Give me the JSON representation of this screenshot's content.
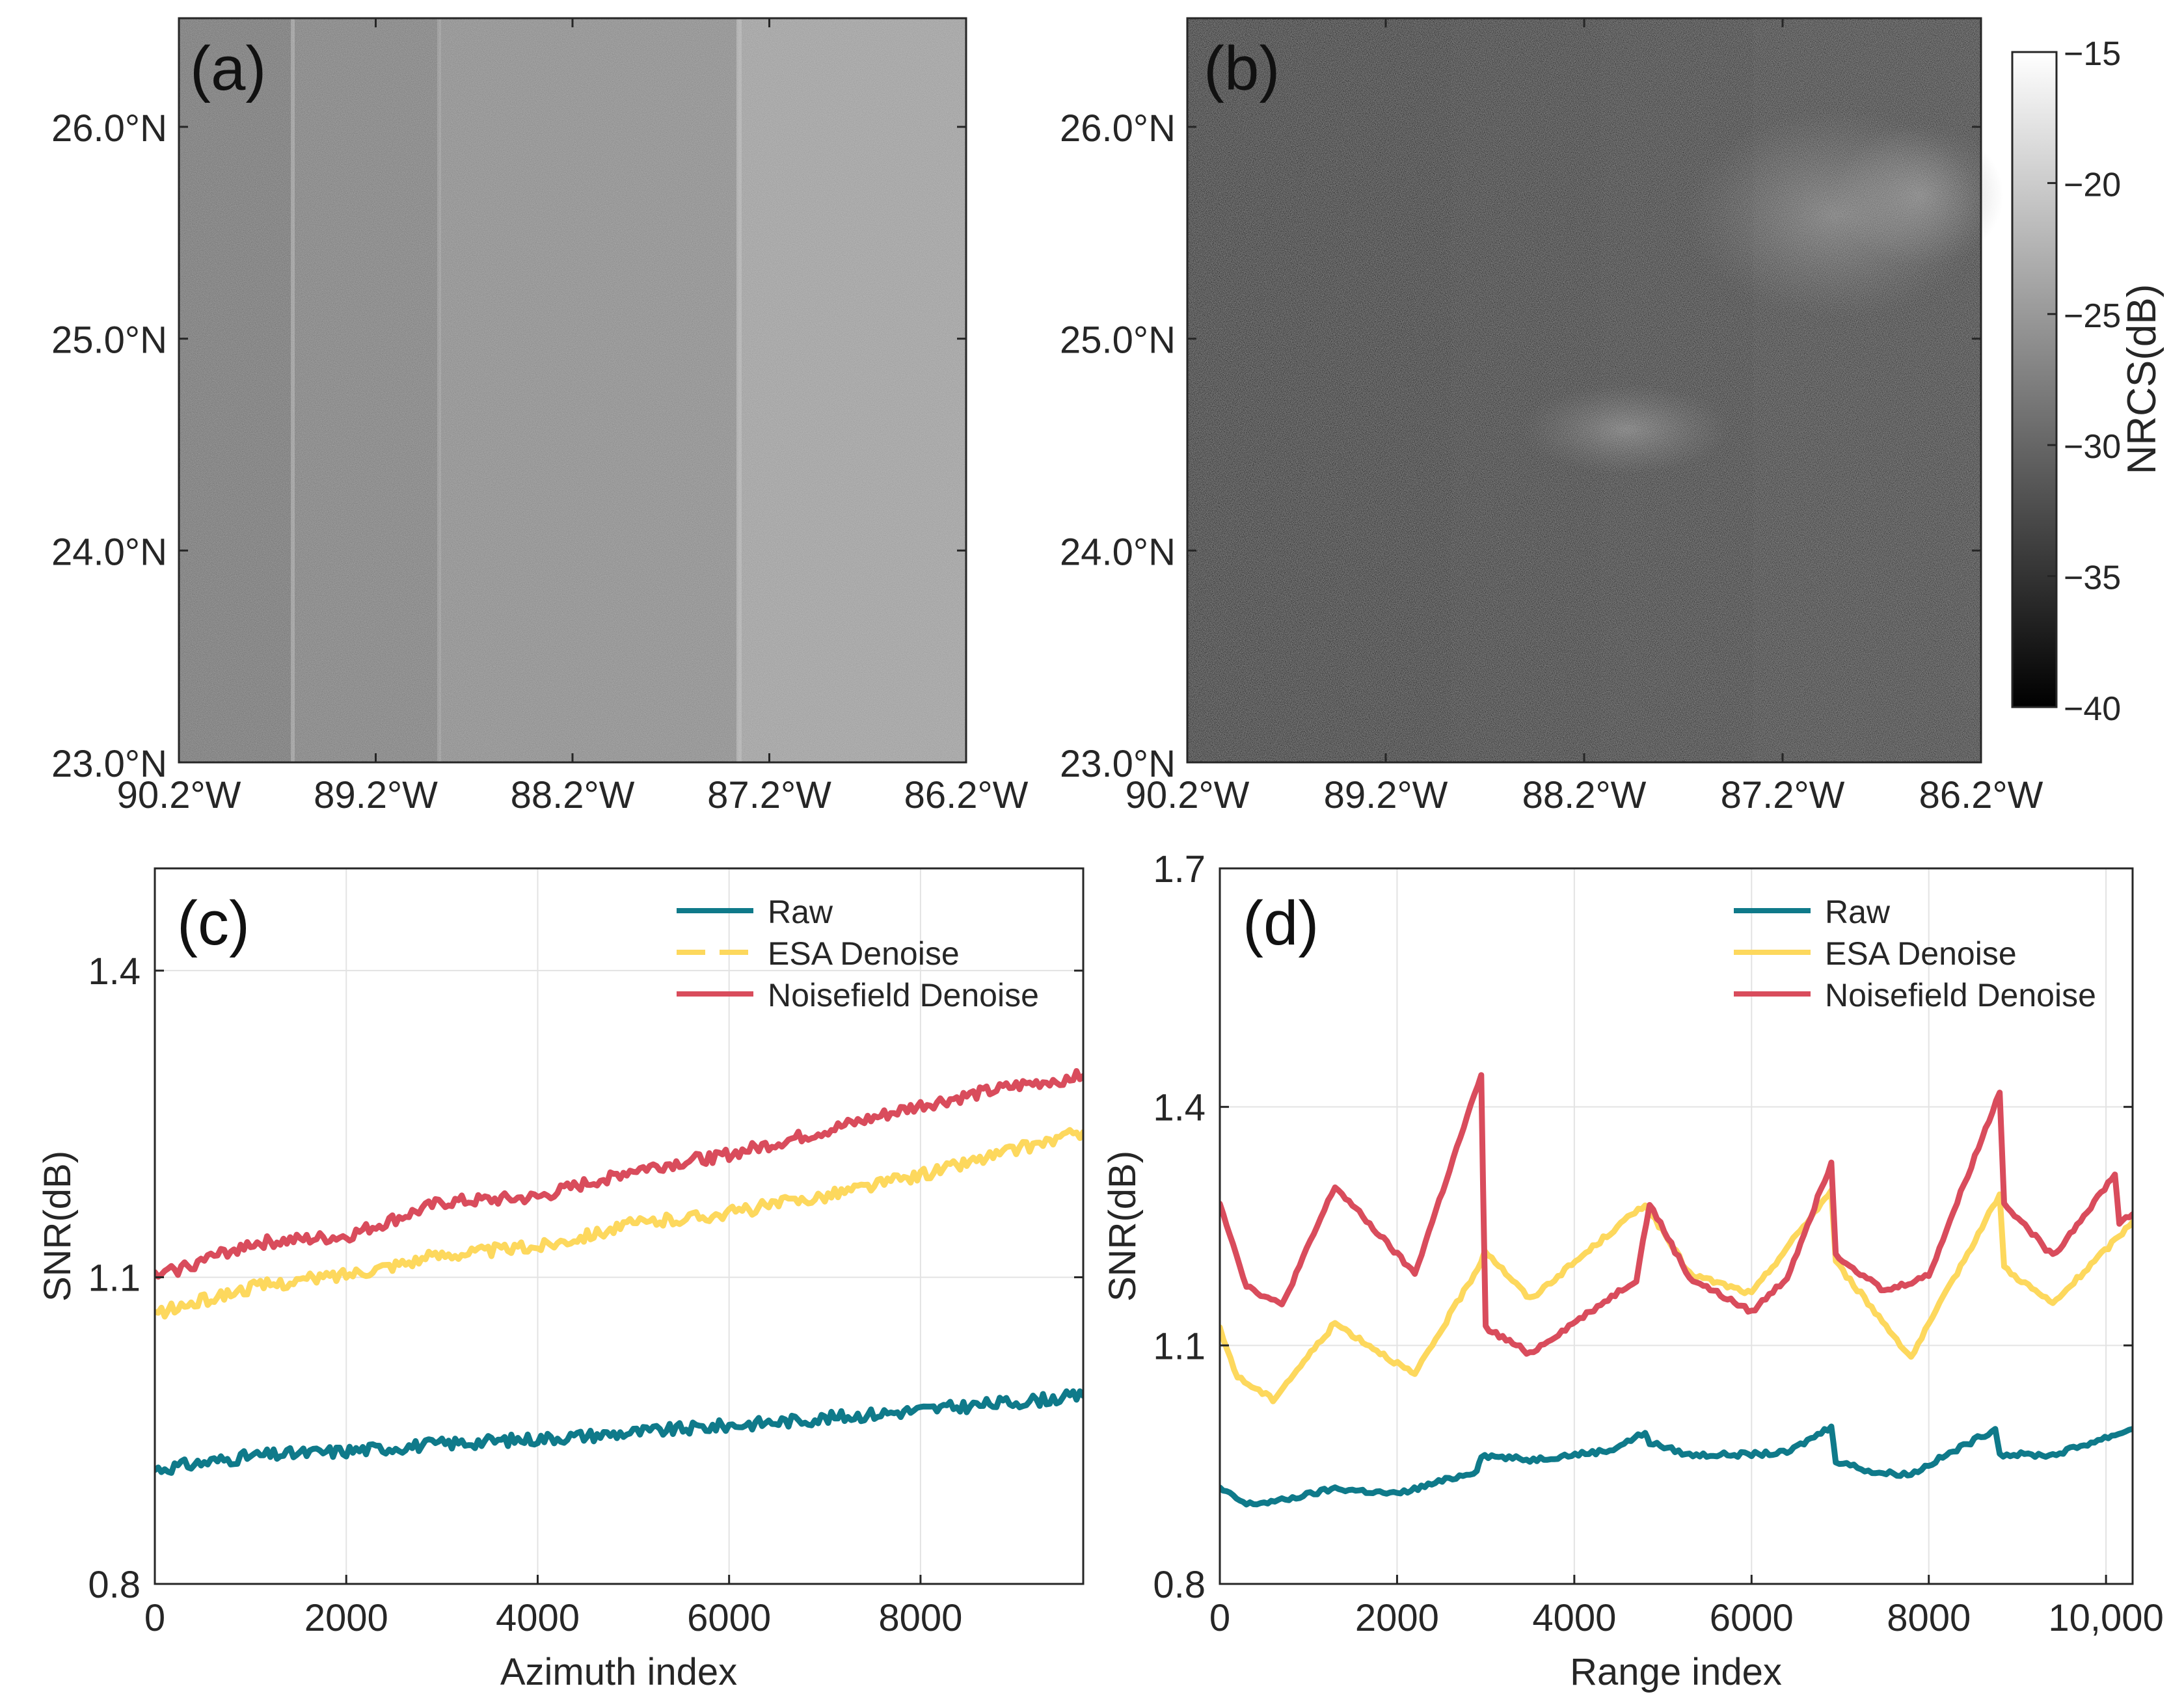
{
  "chart_data": [
    {
      "panel_label": "(a)",
      "type": "heatmap",
      "description_kind": "SAR NRCS image before denoising",
      "x_ticks": [
        "90.2°W",
        "89.2°W",
        "88.2°W",
        "87.2°W",
        "86.2°W"
      ],
      "y_ticks": [
        "26.0°N",
        "25.0°N",
        "24.0°N",
        "23.0°N"
      ],
      "colors": {
        "subswath_tones": [
          "#6c6c6c",
          "#777777",
          "#858585",
          "#9a9a9a"
        ]
      }
    },
    {
      "panel_label": "(b)",
      "type": "heatmap",
      "description_kind": "SAR NRCS image after noisefield denoising",
      "x_ticks": [
        "90.2°W",
        "89.2°W",
        "88.2°W",
        "87.2°W",
        "86.2°W"
      ],
      "y_ticks": [
        "26.0°N",
        "25.0°N",
        "24.0°N",
        "23.0°N"
      ],
      "colorbar": {
        "label": "NRCS(dB)",
        "range": [
          -40,
          -15
        ],
        "ticks": [
          "-15",
          "-20",
          "-25",
          "-30",
          "-35",
          "-40"
        ]
      }
    },
    {
      "panel_label": "(c)",
      "type": "line",
      "xlabel": "Azimuth index",
      "ylabel": "SNR(dB)",
      "xlim": [
        0,
        9700
      ],
      "ylim": [
        0.8,
        1.5
      ],
      "x_ticks": [
        "0",
        "2000",
        "4000",
        "6000",
        "8000"
      ],
      "y_ticks": [
        "0.8",
        "1.1",
        "1.4"
      ],
      "legend_position": "top-right",
      "x": [
        0,
        1000,
        2000,
        3000,
        4000,
        5000,
        6000,
        7000,
        8000,
        9000,
        9700
      ],
      "series": [
        {
          "name": "Raw",
          "color": "#0f7a8a",
          "values": [
            0.912,
            0.925,
            0.93,
            0.937,
            0.942,
            0.948,
            0.955,
            0.962,
            0.97,
            0.978,
            0.984
          ]
        },
        {
          "name": "ESA Denoise",
          "color": "#fdd85d",
          "dashed_legend": true,
          "values": [
            1.064,
            1.09,
            1.103,
            1.122,
            1.13,
            1.152,
            1.163,
            1.18,
            1.2,
            1.225,
            1.242
          ]
        },
        {
          "name": "Noisefield Denoise",
          "color": "#d94c5c",
          "values": [
            1.1,
            1.133,
            1.14,
            1.173,
            1.178,
            1.205,
            1.22,
            1.243,
            1.268,
            1.287,
            1.297
          ]
        }
      ]
    },
    {
      "panel_label": "(d)",
      "type": "line",
      "xlabel": "Range index",
      "ylabel": "SNR(dB)",
      "xlim": [
        0,
        10300
      ],
      "ylim": [
        0.8,
        1.7
      ],
      "x_ticks": [
        "0",
        "2000",
        "4000",
        "6000",
        "8000",
        "10,000"
      ],
      "y_ticks": [
        "0.8",
        "1.1",
        "1.4",
        "1.7"
      ],
      "legend_position": "top-right",
      "series": [
        {
          "name": "Raw",
          "color": "#0f7a8a",
          "x": [
            0,
            300,
            700,
            1300,
            2000,
            2900,
            2950,
            3500,
            4400,
            4800,
            4850,
            5300,
            6000,
            6400,
            6900,
            6950,
            7400,
            7800,
            8750,
            8800,
            9400,
            10300
          ],
          "values": [
            0.92,
            0.9,
            0.905,
            0.92,
            0.913,
            0.942,
            0.962,
            0.956,
            0.968,
            0.99,
            0.978,
            0.962,
            0.963,
            0.965,
            0.998,
            0.955,
            0.94,
            0.938,
            0.995,
            0.963,
            0.962,
            0.995
          ]
        },
        {
          "name": "ESA Denoise",
          "color": "#fdd85d",
          "x": [
            0,
            200,
            600,
            1300,
            2200,
            2950,
            2990,
            3500,
            4800,
            5300,
            6000,
            6900,
            6950,
            7800,
            8800,
            8850,
            9400,
            10300
          ],
          "values": [
            1.12,
            1.06,
            1.032,
            1.128,
            1.063,
            1.205,
            1.22,
            1.158,
            1.278,
            1.19,
            1.165,
            1.295,
            1.205,
            1.085,
            1.29,
            1.198,
            1.152,
            1.255
          ]
        },
        {
          "name": "Noisefield Denoise",
          "color": "#d94c5c",
          "x": [
            0,
            300,
            700,
            1300,
            2200,
            2950,
            2970,
            3000,
            3500,
            4700,
            4850,
            5300,
            6000,
            6400,
            6900,
            6950,
            7500,
            8000,
            8800,
            8850,
            9400,
            10100,
            10150,
            10300
          ],
          "values": [
            1.28,
            1.175,
            1.15,
            1.3,
            1.19,
            1.44,
            1.3,
            1.122,
            1.09,
            1.183,
            1.278,
            1.185,
            1.142,
            1.185,
            1.33,
            1.215,
            1.168,
            1.188,
            1.418,
            1.28,
            1.212,
            1.315,
            1.255,
            1.265
          ]
        }
      ]
    }
  ]
}
